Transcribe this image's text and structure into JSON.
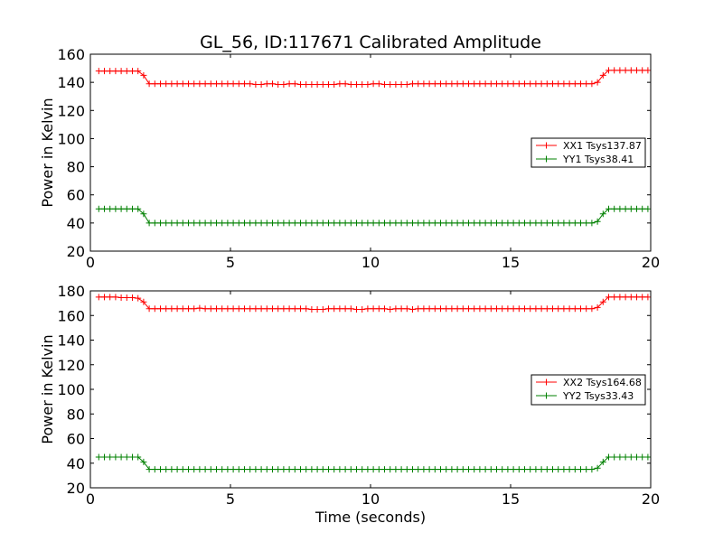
{
  "colors": {
    "xx": "#ff0000",
    "yy": "#008000",
    "axes": "#000000",
    "background": "#ffffff"
  },
  "chart_data": [
    {
      "type": "line",
      "title": "GL_56, ID:117671 Calibrated Amplitude",
      "xlabel": "",
      "ylabel": "Power in Kelvin",
      "xlim": [
        0,
        20
      ],
      "ylim": [
        20,
        160
      ],
      "xticks": [
        "0",
        "5",
        "10",
        "15",
        "20"
      ],
      "yticks": [
        "20",
        "40",
        "60",
        "80",
        "100",
        "120",
        "140",
        "160"
      ],
      "grid": false,
      "legend": {
        "position": "center-right"
      },
      "series": [
        {
          "name": "XX1 Tsys137.87",
          "color": "#ff0000",
          "marker": "+",
          "x": [
            0.3,
            0.5,
            0.7,
            0.9,
            1.1,
            1.3,
            1.5,
            1.7,
            1.9,
            2.1,
            2.3,
            2.5,
            2.7,
            2.9,
            3.1,
            3.3,
            3.5,
            3.7,
            3.9,
            4.1,
            4.3,
            4.5,
            4.7,
            4.9,
            5.1,
            5.3,
            5.5,
            5.7,
            5.9,
            6.1,
            6.3,
            6.5,
            6.7,
            6.9,
            7.1,
            7.3,
            7.5,
            7.7,
            7.9,
            8.1,
            8.3,
            8.5,
            8.7,
            8.9,
            9.1,
            9.3,
            9.5,
            9.7,
            9.9,
            10.1,
            10.3,
            10.5,
            10.7,
            10.9,
            11.1,
            11.3,
            11.5,
            11.7,
            11.9,
            12.1,
            12.3,
            12.5,
            12.7,
            12.9,
            13.1,
            13.3,
            13.5,
            13.7,
            13.9,
            14.1,
            14.3,
            14.5,
            14.7,
            14.9,
            15.1,
            15.3,
            15.5,
            15.7,
            15.9,
            16.1,
            16.3,
            16.5,
            16.7,
            16.9,
            17.1,
            17.3,
            17.5,
            17.7,
            17.9,
            18.1,
            18.3,
            18.5,
            18.7,
            18.9,
            19.1,
            19.3,
            19.5,
            19.7,
            19.9
          ],
          "y": [
            148,
            148,
            148,
            148,
            148,
            148,
            148,
            148,
            145,
            139,
            139,
            139,
            139,
            139,
            139,
            139,
            139,
            139,
            139,
            139,
            139,
            139,
            139,
            139,
            139,
            139,
            139,
            139,
            138.5,
            138.5,
            139,
            139,
            138.5,
            138.5,
            139,
            139,
            138.5,
            138.5,
            138.5,
            138.5,
            138.5,
            138.5,
            138.5,
            139,
            139,
            138.5,
            138.5,
            138.5,
            138.5,
            139,
            139,
            138.5,
            138.5,
            138.5,
            138.5,
            138.5,
            139,
            139,
            139,
            139,
            139,
            139,
            139,
            139,
            139,
            139,
            139,
            139,
            139,
            139,
            139,
            139,
            139,
            139,
            139,
            139,
            139,
            139,
            139,
            139,
            139,
            139,
            139,
            139,
            139,
            139,
            139,
            139,
            139,
            140,
            145,
            148.5,
            148.5,
            148.5,
            148.5,
            148.5,
            148.5,
            148.5,
            148.5
          ]
        },
        {
          "name": "YY1 Tsys38.41",
          "color": "#008000",
          "marker": "+",
          "x": [
            0.3,
            0.5,
            0.7,
            0.9,
            1.1,
            1.3,
            1.5,
            1.7,
            1.9,
            2.1,
            2.3,
            2.5,
            2.7,
            2.9,
            3.1,
            3.3,
            3.5,
            3.7,
            3.9,
            4.1,
            4.3,
            4.5,
            4.7,
            4.9,
            5.1,
            5.3,
            5.5,
            5.7,
            5.9,
            6.1,
            6.3,
            6.5,
            6.7,
            6.9,
            7.1,
            7.3,
            7.5,
            7.7,
            7.9,
            8.1,
            8.3,
            8.5,
            8.7,
            8.9,
            9.1,
            9.3,
            9.5,
            9.7,
            9.9,
            10.1,
            10.3,
            10.5,
            10.7,
            10.9,
            11.1,
            11.3,
            11.5,
            11.7,
            11.9,
            12.1,
            12.3,
            12.5,
            12.7,
            12.9,
            13.1,
            13.3,
            13.5,
            13.7,
            13.9,
            14.1,
            14.3,
            14.5,
            14.7,
            14.9,
            15.1,
            15.3,
            15.5,
            15.7,
            15.9,
            16.1,
            16.3,
            16.5,
            16.7,
            16.9,
            17.1,
            17.3,
            17.5,
            17.7,
            17.9,
            18.1,
            18.3,
            18.5,
            18.7,
            18.9,
            19.1,
            19.3,
            19.5,
            19.7,
            19.9
          ],
          "y": [
            50,
            50,
            50,
            50,
            50,
            50,
            50,
            50,
            46.5,
            40,
            40,
            40,
            40,
            40,
            40,
            40,
            40,
            40,
            40,
            40,
            40,
            40,
            40,
            40,
            40,
            40,
            40,
            40,
            40,
            40,
            40,
            40,
            40,
            40,
            40,
            40,
            40,
            40,
            40,
            40,
            40,
            40,
            40,
            40,
            40,
            40,
            40,
            40,
            40,
            40,
            40,
            40,
            40,
            40,
            40,
            40,
            40,
            40,
            40,
            40,
            40,
            40,
            40,
            40,
            40,
            40,
            40,
            40,
            40,
            40,
            40,
            40,
            40,
            40,
            40,
            40,
            40,
            40,
            40,
            40,
            40,
            40,
            40,
            40,
            40,
            40,
            40,
            40,
            40,
            41,
            46.5,
            50,
            50,
            50,
            50,
            50,
            50,
            50,
            50
          ]
        }
      ]
    },
    {
      "type": "line",
      "title": "",
      "xlabel": "Time (seconds)",
      "ylabel": "Power in Kelvin",
      "xlim": [
        0,
        20
      ],
      "ylim": [
        20,
        180
      ],
      "xticks": [
        "0",
        "5",
        "10",
        "15",
        "20"
      ],
      "yticks": [
        "20",
        "40",
        "60",
        "80",
        "100",
        "120",
        "140",
        "160",
        "180"
      ],
      "grid": false,
      "legend": {
        "position": "center-right"
      },
      "series": [
        {
          "name": "XX2 Tsys164.68",
          "color": "#ff0000",
          "marker": "+",
          "x": [
            0.3,
            0.5,
            0.7,
            0.9,
            1.1,
            1.3,
            1.5,
            1.7,
            1.9,
            2.1,
            2.3,
            2.5,
            2.7,
            2.9,
            3.1,
            3.3,
            3.5,
            3.7,
            3.9,
            4.1,
            4.3,
            4.5,
            4.7,
            4.9,
            5.1,
            5.3,
            5.5,
            5.7,
            5.9,
            6.1,
            6.3,
            6.5,
            6.7,
            6.9,
            7.1,
            7.3,
            7.5,
            7.7,
            7.9,
            8.1,
            8.3,
            8.5,
            8.7,
            8.9,
            9.1,
            9.3,
            9.5,
            9.7,
            9.9,
            10.1,
            10.3,
            10.5,
            10.7,
            10.9,
            11.1,
            11.3,
            11.5,
            11.7,
            11.9,
            12.1,
            12.3,
            12.5,
            12.7,
            12.9,
            13.1,
            13.3,
            13.5,
            13.7,
            13.9,
            14.1,
            14.3,
            14.5,
            14.7,
            14.9,
            15.1,
            15.3,
            15.5,
            15.7,
            15.9,
            16.1,
            16.3,
            16.5,
            16.7,
            16.9,
            17.1,
            17.3,
            17.5,
            17.7,
            17.9,
            18.1,
            18.3,
            18.5,
            18.7,
            18.9,
            19.1,
            19.3,
            19.5,
            19.7,
            19.9
          ],
          "y": [
            175,
            175,
            175,
            175,
            174.5,
            174.5,
            174.5,
            174,
            171,
            165.5,
            165.5,
            165.5,
            165.5,
            165.5,
            165.5,
            165.5,
            165.5,
            165.5,
            166,
            165.5,
            165.5,
            165.5,
            165.5,
            165.5,
            165.5,
            165.5,
            165.5,
            165.5,
            165.5,
            165.5,
            165.5,
            165.5,
            165.5,
            165.5,
            165.5,
            165.5,
            165.5,
            165.5,
            165,
            165,
            165,
            165.5,
            165.5,
            165.5,
            165.5,
            165.5,
            165,
            165,
            165.5,
            165.5,
            165.5,
            165.5,
            165,
            165.5,
            165.5,
            165.5,
            165,
            165.5,
            165.5,
            165.5,
            165.5,
            165.5,
            165.5,
            165.5,
            165.5,
            165.5,
            165.5,
            165.5,
            165.5,
            165.5,
            165.5,
            165.5,
            165.5,
            165.5,
            165.5,
            165.5,
            165.5,
            165.5,
            165.5,
            165.5,
            165.5,
            165.5,
            165.5,
            165.5,
            165.5,
            165.5,
            165.5,
            165.5,
            165.5,
            166.5,
            171,
            175,
            175,
            175,
            175,
            175,
            175,
            175,
            175
          ]
        },
        {
          "name": "YY2 Tsys33.43",
          "color": "#008000",
          "marker": "+",
          "x": [
            0.3,
            0.5,
            0.7,
            0.9,
            1.1,
            1.3,
            1.5,
            1.7,
            1.9,
            2.1,
            2.3,
            2.5,
            2.7,
            2.9,
            3.1,
            3.3,
            3.5,
            3.7,
            3.9,
            4.1,
            4.3,
            4.5,
            4.7,
            4.9,
            5.1,
            5.3,
            5.5,
            5.7,
            5.9,
            6.1,
            6.3,
            6.5,
            6.7,
            6.9,
            7.1,
            7.3,
            7.5,
            7.7,
            7.9,
            8.1,
            8.3,
            8.5,
            8.7,
            8.9,
            9.1,
            9.3,
            9.5,
            9.7,
            9.9,
            10.1,
            10.3,
            10.5,
            10.7,
            10.9,
            11.1,
            11.3,
            11.5,
            11.7,
            11.9,
            12.1,
            12.3,
            12.5,
            12.7,
            12.9,
            13.1,
            13.3,
            13.5,
            13.7,
            13.9,
            14.1,
            14.3,
            14.5,
            14.7,
            14.9,
            15.1,
            15.3,
            15.5,
            15.7,
            15.9,
            16.1,
            16.3,
            16.5,
            16.7,
            16.9,
            17.1,
            17.3,
            17.5,
            17.7,
            17.9,
            18.1,
            18.3,
            18.5,
            18.7,
            18.9,
            19.1,
            19.3,
            19.5,
            19.7,
            19.9
          ],
          "y": [
            45,
            45,
            45,
            45,
            45,
            45,
            45,
            45,
            41,
            35,
            35,
            35,
            35,
            35,
            35,
            35,
            35,
            35,
            35,
            35,
            35,
            35,
            35,
            35,
            35,
            35,
            35,
            35,
            35,
            35,
            35,
            35,
            35,
            35,
            35,
            35,
            35,
            35,
            35,
            35,
            35,
            35,
            35,
            35,
            35,
            35,
            35,
            35,
            35,
            35,
            35,
            35,
            35,
            35,
            35,
            35,
            35,
            35,
            35,
            35,
            35,
            35,
            35,
            35,
            35,
            35,
            35,
            35,
            35,
            35,
            35,
            35,
            35,
            35,
            35,
            35,
            35,
            35,
            35,
            35,
            35,
            35,
            35,
            35,
            35,
            35,
            35,
            35,
            35,
            36,
            41,
            45,
            45,
            45,
            45,
            45,
            45,
            45,
            45
          ]
        }
      ]
    }
  ]
}
